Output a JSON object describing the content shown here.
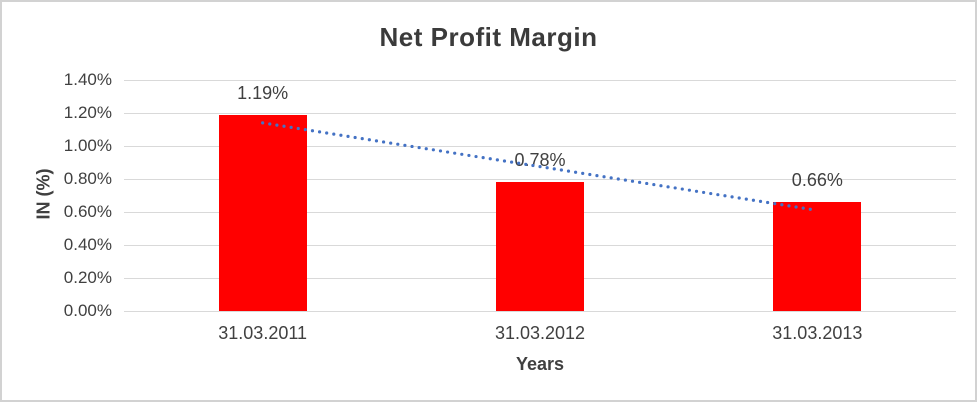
{
  "chart_data": {
    "type": "bar",
    "title": "Net Profit Margin",
    "xlabel": "Years",
    "ylabel": "IN (%)",
    "categories": [
      "31.03.2011",
      "31.03.2012",
      "31.03.2013"
    ],
    "values": [
      1.19,
      0.78,
      0.66
    ],
    "data_labels": [
      "1.19%",
      "0.78%",
      "0.66%"
    ],
    "ylim": [
      0,
      1.4
    ],
    "ytick_step": 0.2,
    "ytick_labels": [
      "0.00%",
      "0.20%",
      "0.40%",
      "0.60%",
      "0.80%",
      "1.00%",
      "1.20%",
      "1.40%"
    ],
    "grid": "horizontal",
    "legend": "none",
    "bar_color": "#FF0000",
    "gridline_color": "#D9D9D9",
    "trendline": {
      "type": "linear",
      "style": "dotted",
      "color": "#4472C4",
      "start_value": 1.14,
      "end_value": 0.61
    }
  }
}
